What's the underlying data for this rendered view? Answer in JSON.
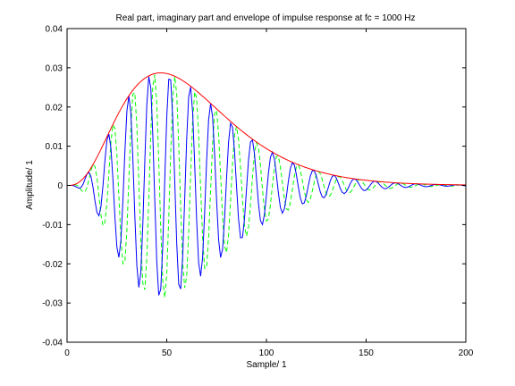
{
  "chart_data": {
    "type": "line",
    "title": "Real part, imaginary part and envelope of impulse response at fc = 1000 Hz",
    "xlabel": "Sample/ 1",
    "ylabel": "Amplitude/ 1",
    "xlim": [
      0,
      200
    ],
    "ylim": [
      -0.04,
      0.04
    ],
    "xticks": [
      0,
      50,
      100,
      150,
      200
    ],
    "yticks": [
      -0.04,
      -0.03,
      -0.02,
      -0.01,
      0,
      0.01,
      0.02,
      0.03,
      0.04
    ],
    "xtick_labels": [
      "0",
      "50",
      "100",
      "150",
      "200"
    ],
    "ytick_labels": [
      "-0.04",
      "-0.03",
      "-0.02",
      "-0.01",
      "0",
      "0.01",
      "0.02",
      "0.03",
      "0.04"
    ],
    "grid": false,
    "samples": 201,
    "envelope_model": {
      "form": "gammatone",
      "order": 4,
      "peak_sample": 47,
      "peak_amplitude": 0.0287
    },
    "carrier_period_samples": 10.3,
    "series": [
      {
        "role": "real",
        "color": "#0000ff",
        "dash": "solid"
      },
      {
        "role": "imaginary",
        "color": "#00ff00",
        "dash": "dashed"
      },
      {
        "role": "envelope",
        "color": "#ff0000",
        "dash": "solid"
      }
    ]
  }
}
